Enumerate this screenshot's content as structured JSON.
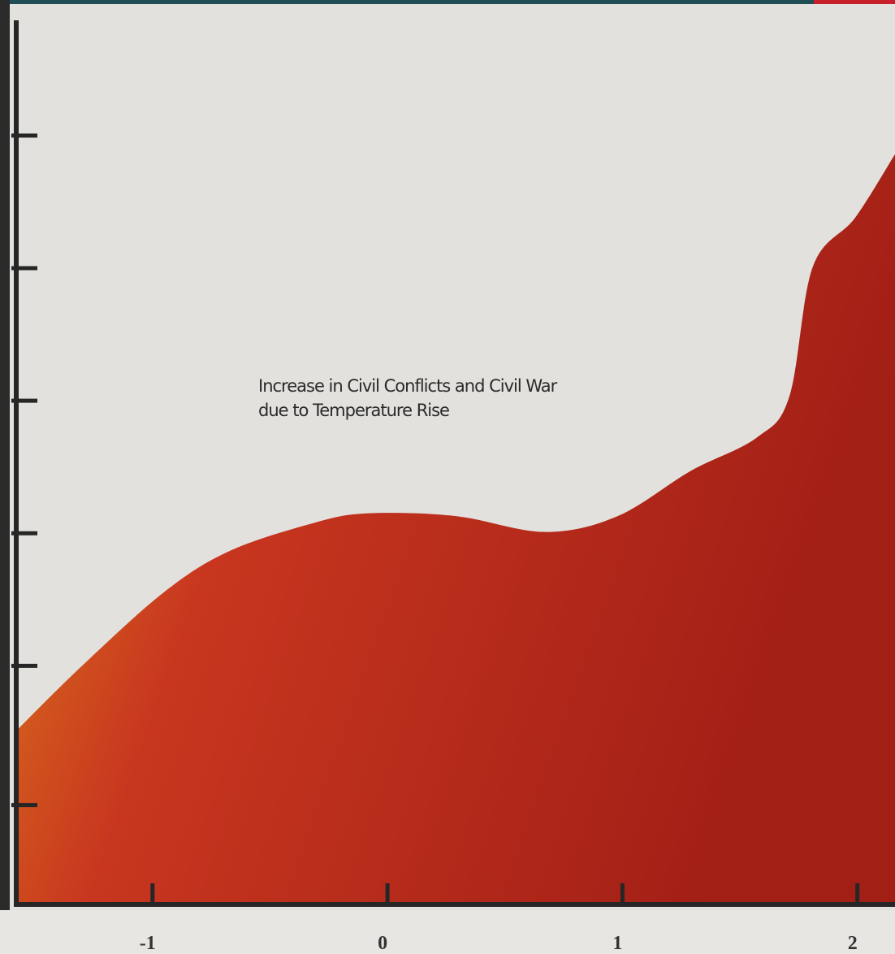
{
  "chart_data": {
    "type": "area",
    "annotation": [
      "Increase in Civil Conflicts and Civil War",
      "due to Temperature Rise"
    ],
    "x": [
      -1.58,
      -1.3,
      -0.955,
      -0.68,
      -0.33,
      -0.09,
      0.29,
      0.67,
      0.98,
      1.29,
      1.57,
      1.71,
      1.81,
      1.99,
      2.16
    ],
    "values": [
      1.31,
      1.8,
      2.35,
      2.66,
      2.87,
      2.95,
      2.93,
      2.81,
      2.93,
      3.27,
      3.52,
      3.83,
      4.81,
      5.18,
      5.66
    ],
    "color": [
      "#e08a1c",
      "#c8361f",
      "#a21f16"
    ],
    "xlim": [
      -1.58,
      2.16
    ],
    "ylim": [
      0,
      6.67
    ],
    "xticks": [
      -1,
      0,
      1,
      2
    ],
    "yticks": [
      0.75,
      1.8,
      2.8,
      3.8,
      4.8,
      5.8
    ]
  }
}
